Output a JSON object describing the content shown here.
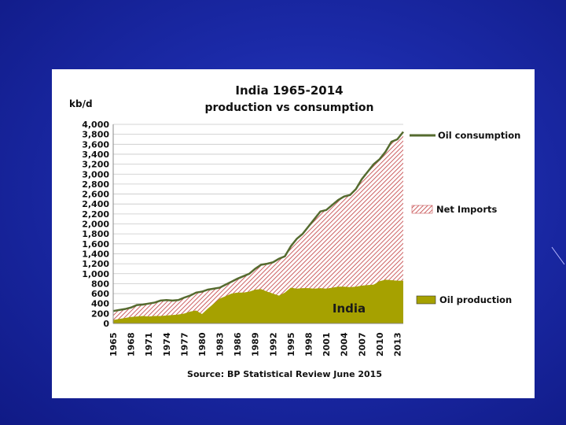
{
  "chart_data": {
    "type": "area",
    "title": "India 1965-2014",
    "subtitle": "production vs consumption",
    "ylabel": "kb/d",
    "ylim": [
      0,
      4000
    ],
    "yticks": [
      0,
      200,
      400,
      600,
      800,
      1000,
      1200,
      1400,
      1600,
      1800,
      2000,
      2200,
      2400,
      2600,
      2800,
      3000,
      3200,
      3400,
      3600,
      3800,
      4000
    ],
    "ytick_labels": [
      "0",
      "200",
      "400",
      "600",
      "800",
      "1,000",
      "1,200",
      "1,400",
      "1,600",
      "1,800",
      "2,000",
      "2,200",
      "2,400",
      "2,600",
      "2,800",
      "3,000",
      "3,200",
      "3,400",
      "3,600",
      "3,800",
      "4,000"
    ],
    "xtick_labels": [
      "1965",
      "1968",
      "1971",
      "1974",
      "1977",
      "1980",
      "1983",
      "1986",
      "1989",
      "1992",
      "1995",
      "1998",
      "2001",
      "2004",
      "2007",
      "2010",
      "2013"
    ],
    "x": [
      1965,
      1966,
      1967,
      1968,
      1969,
      1970,
      1971,
      1972,
      1973,
      1974,
      1975,
      1976,
      1977,
      1978,
      1979,
      1980,
      1981,
      1982,
      1983,
      1984,
      1985,
      1986,
      1987,
      1988,
      1989,
      1990,
      1991,
      1992,
      1993,
      1994,
      1995,
      1996,
      1997,
      1998,
      1999,
      2000,
      2001,
      2002,
      2003,
      2004,
      2005,
      2006,
      2007,
      2008,
      2009,
      2010,
      2011,
      2012,
      2013,
      2014
    ],
    "series": [
      {
        "name": "Oil consumption",
        "values": [
          250,
          270,
          290,
          320,
          370,
          380,
          400,
          420,
          460,
          470,
          460,
          470,
          520,
          560,
          620,
          640,
          680,
          700,
          720,
          780,
          840,
          900,
          950,
          1000,
          1100,
          1180,
          1200,
          1230,
          1300,
          1350,
          1550,
          1700,
          1800,
          1950,
          2100,
          2250,
          2280,
          2380,
          2480,
          2550,
          2580,
          2700,
          2900,
          3050,
          3200,
          3300,
          3450,
          3650,
          3700,
          3850
        ]
      },
      {
        "name": "Oil production",
        "values": [
          70,
          90,
          110,
          130,
          140,
          150,
          140,
          150,
          150,
          160,
          170,
          180,
          200,
          240,
          260,
          190,
          300,
          400,
          500,
          550,
          600,
          620,
          620,
          640,
          680,
          690,
          640,
          600,
          560,
          620,
          720,
          700,
          710,
          710,
          700,
          710,
          700,
          720,
          740,
          740,
          730,
          740,
          760,
          770,
          780,
          850,
          880,
          870,
          860,
          860
        ]
      }
    ],
    "legend": {
      "consumption": "Oil consumption",
      "imports": "Net Imports",
      "production": "Oil production"
    },
    "annotation": "India",
    "source": "Source: BP Statistical Review  June 2015",
    "colors": {
      "consumption_line": "#556b2f",
      "production_fill": "#a6a100",
      "imports_hatch": "#c0393b",
      "grid": "#c8c8c8"
    }
  }
}
